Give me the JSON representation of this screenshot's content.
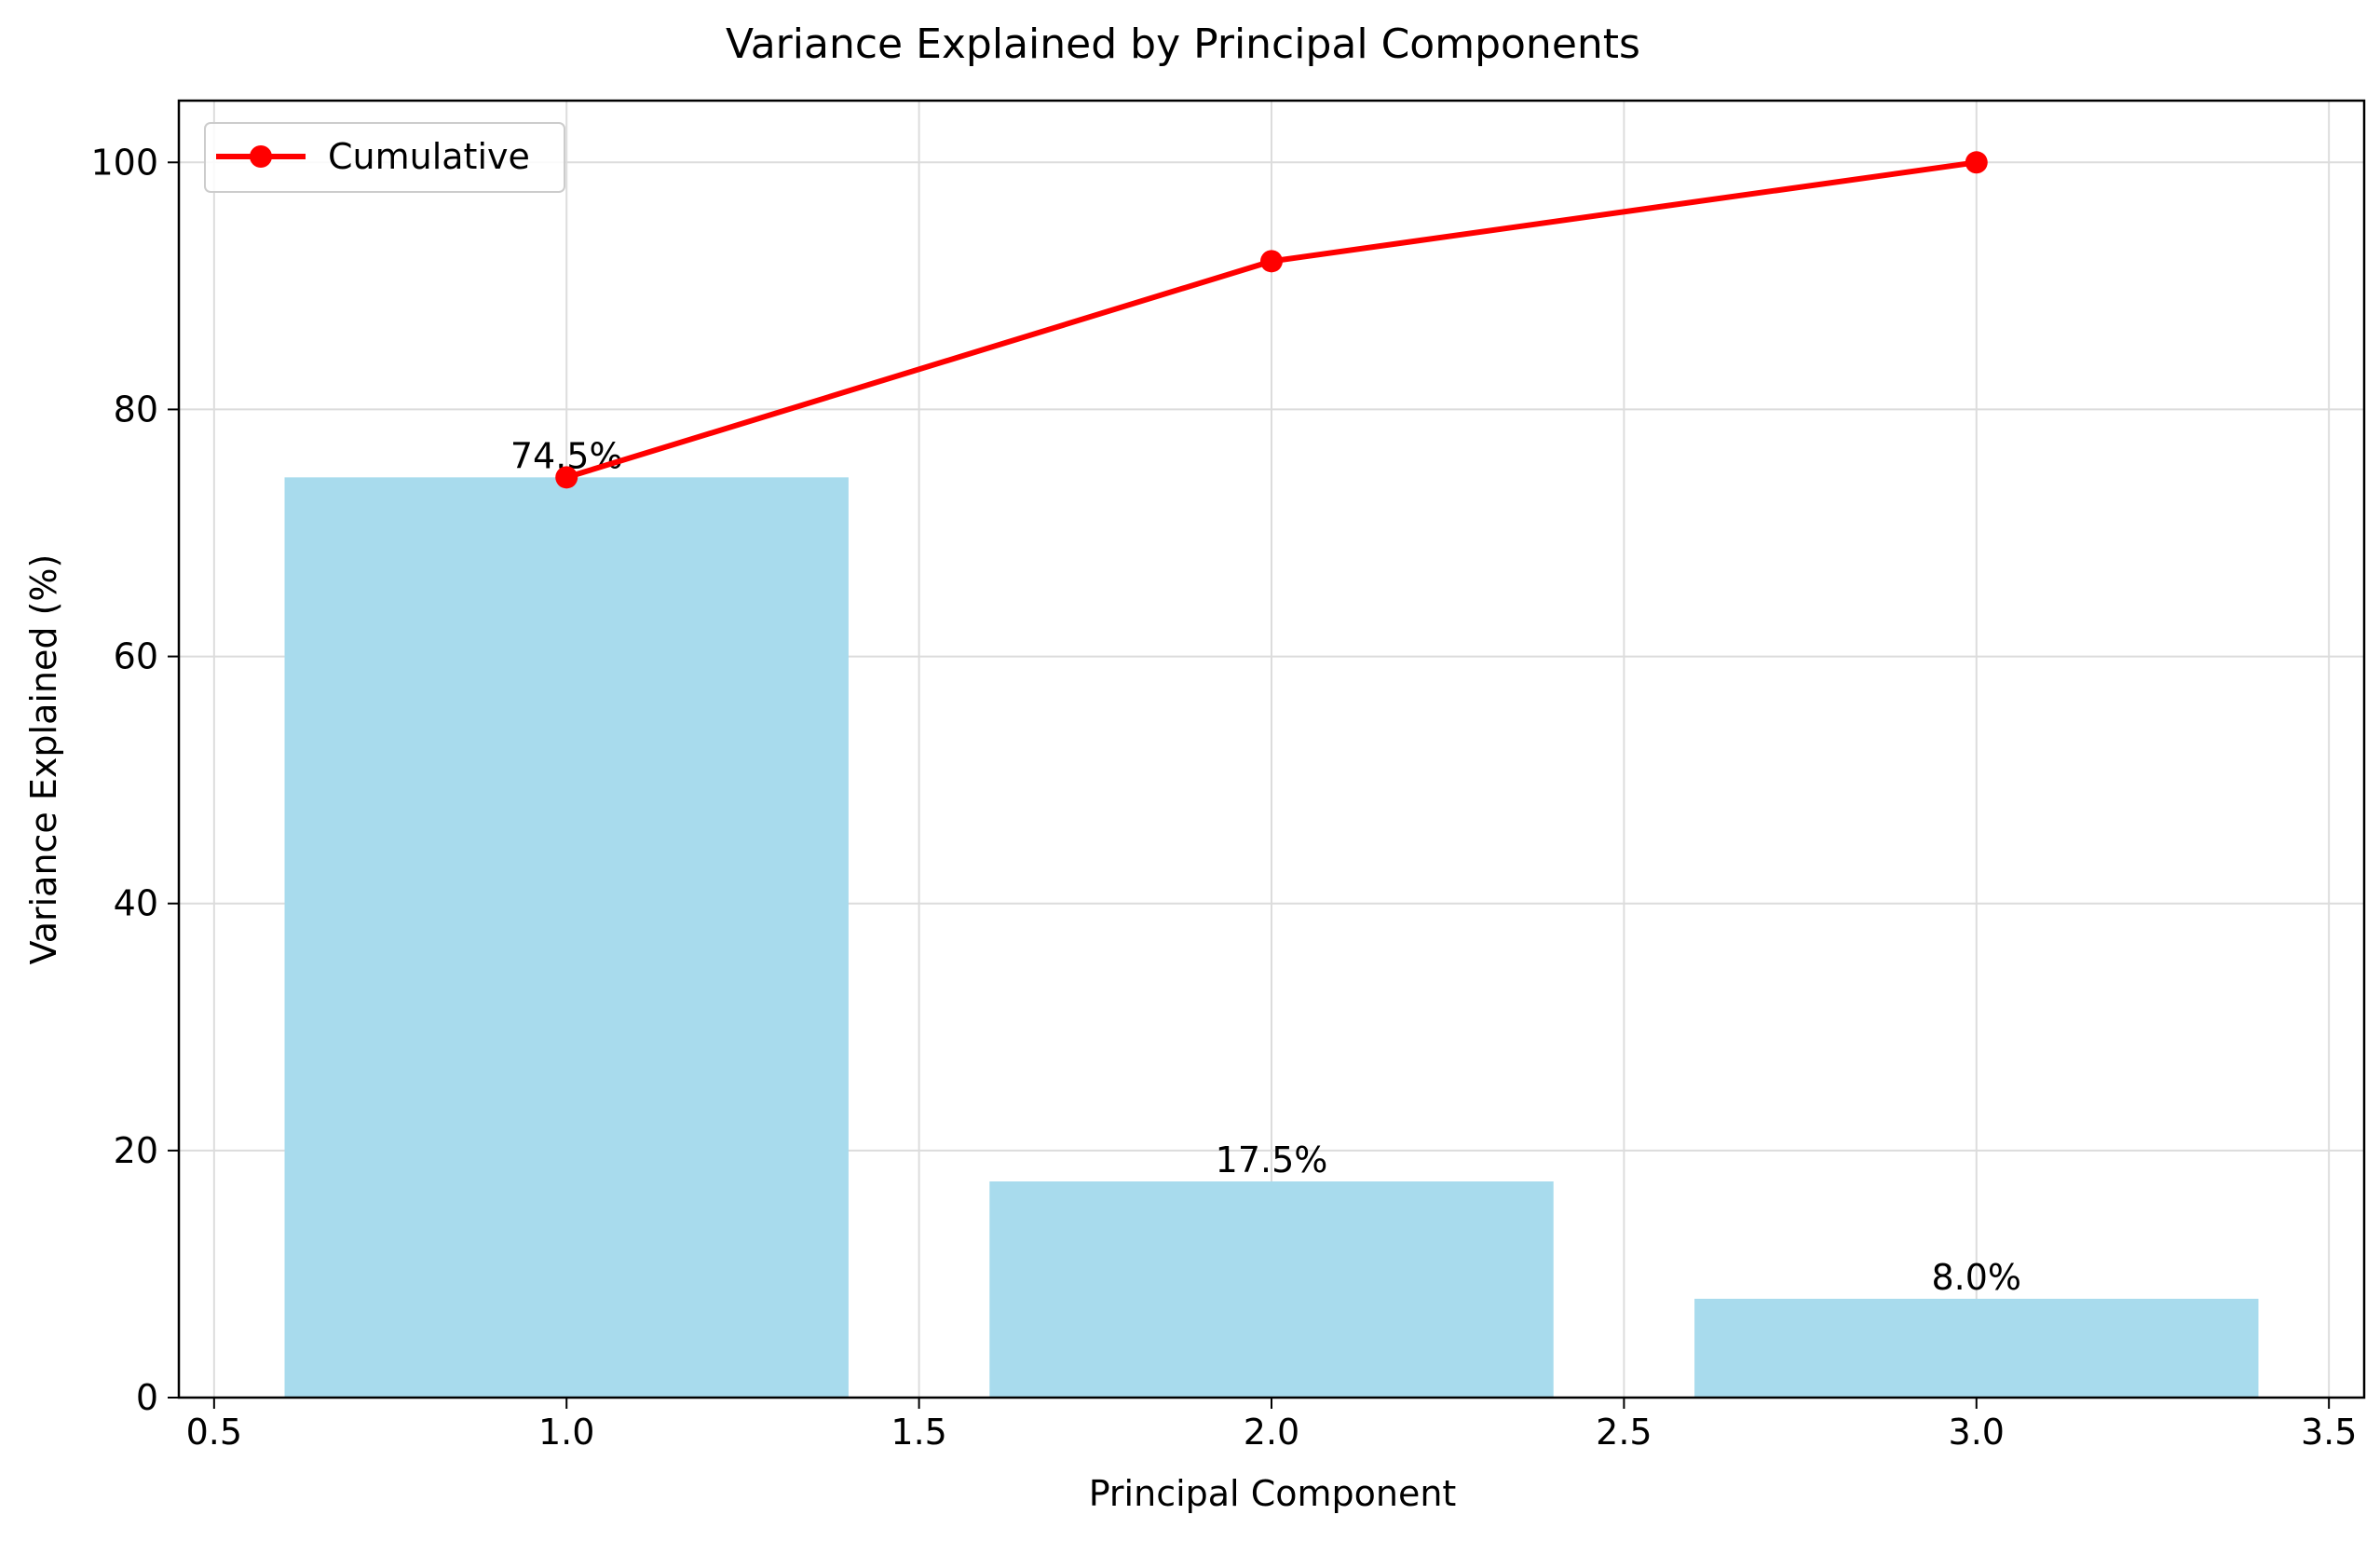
{
  "chart_data": {
    "type": "bar",
    "title": "Variance Explained by Principal Components",
    "xlabel": "Principal Component",
    "ylabel": "Variance Explained (%)",
    "xlim": [
      0.45,
      3.55
    ],
    "ylim": [
      0,
      105
    ],
    "x_ticks": [
      0.5,
      1.0,
      1.5,
      2.0,
      2.5,
      3.0,
      3.5
    ],
    "x_tick_labels": [
      "0.5",
      "1.0",
      "1.5",
      "2.0",
      "2.5",
      "3.0",
      "3.5"
    ],
    "y_ticks": [
      0,
      20,
      40,
      60,
      80,
      100
    ],
    "y_tick_labels": [
      "0",
      "20",
      "40",
      "60",
      "80",
      "100"
    ],
    "grid": true,
    "legend_position": "upper-left",
    "bars": {
      "x": [
        1,
        2,
        3
      ],
      "values": [
        74.5,
        17.5,
        8.0
      ],
      "width": 0.8,
      "labels": [
        "74.5%",
        "17.5%",
        "8.0%"
      ],
      "color": "#a8dbed"
    },
    "series": [
      {
        "name": "Cumulative",
        "type": "line",
        "x": [
          1,
          2,
          3
        ],
        "values": [
          74.5,
          92.0,
          100.0
        ],
        "color": "#ff0000",
        "marker": "circle"
      }
    ]
  }
}
